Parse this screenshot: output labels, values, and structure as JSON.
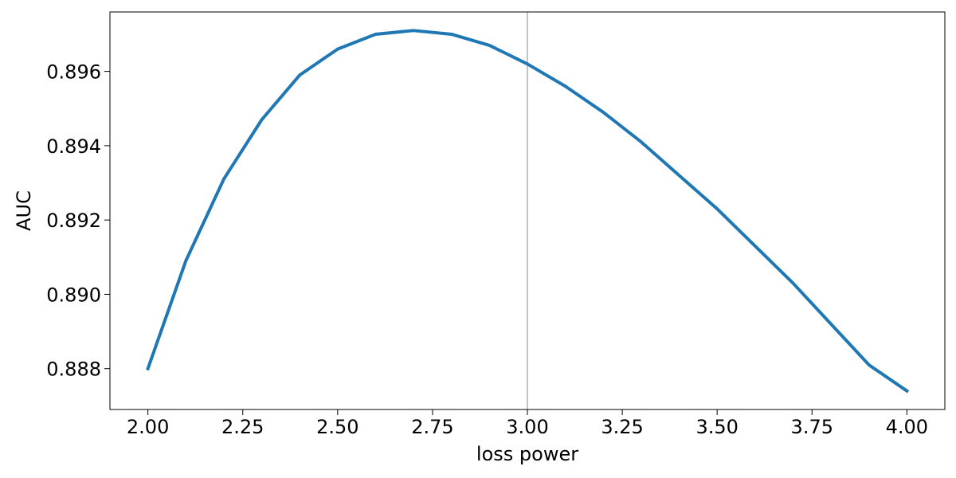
{
  "chart_data": {
    "type": "line",
    "title": "",
    "xlabel": "loss power",
    "ylabel": "AUC",
    "xlim": [
      1.9,
      4.1
    ],
    "ylim": [
      0.8869,
      0.8976
    ],
    "xticks": [
      2.0,
      2.25,
      2.5,
      2.75,
      3.0,
      3.25,
      3.5,
      3.75,
      4.0
    ],
    "xtick_labels": [
      "2.00",
      "2.25",
      "2.50",
      "2.75",
      "3.00",
      "3.25",
      "3.50",
      "3.75",
      "4.00"
    ],
    "yticks": [
      0.888,
      0.89,
      0.892,
      0.894,
      0.896
    ],
    "ytick_labels": [
      "0.888",
      "0.890",
      "0.892",
      "0.894",
      "0.896"
    ],
    "grid": false,
    "series": [
      {
        "color": "#1f77b4",
        "x": [
          2.0,
          2.1,
          2.2,
          2.3,
          2.4,
          2.5,
          2.6,
          2.7,
          2.8,
          2.9,
          3.0,
          3.1,
          3.2,
          3.3,
          3.4,
          3.5,
          3.6,
          3.7,
          3.8,
          3.9,
          4.0
        ],
        "y": [
          0.888,
          0.8909,
          0.8931,
          0.8947,
          0.8959,
          0.8966,
          0.897,
          0.8971,
          0.897,
          0.8967,
          0.8962,
          0.8956,
          0.8949,
          0.8941,
          0.8932,
          0.8923,
          0.8913,
          0.8903,
          0.8892,
          0.8881,
          0.8874
        ]
      }
    ],
    "vlines": [
      {
        "x": 3.0,
        "color": "#b0b0b0"
      }
    ]
  }
}
